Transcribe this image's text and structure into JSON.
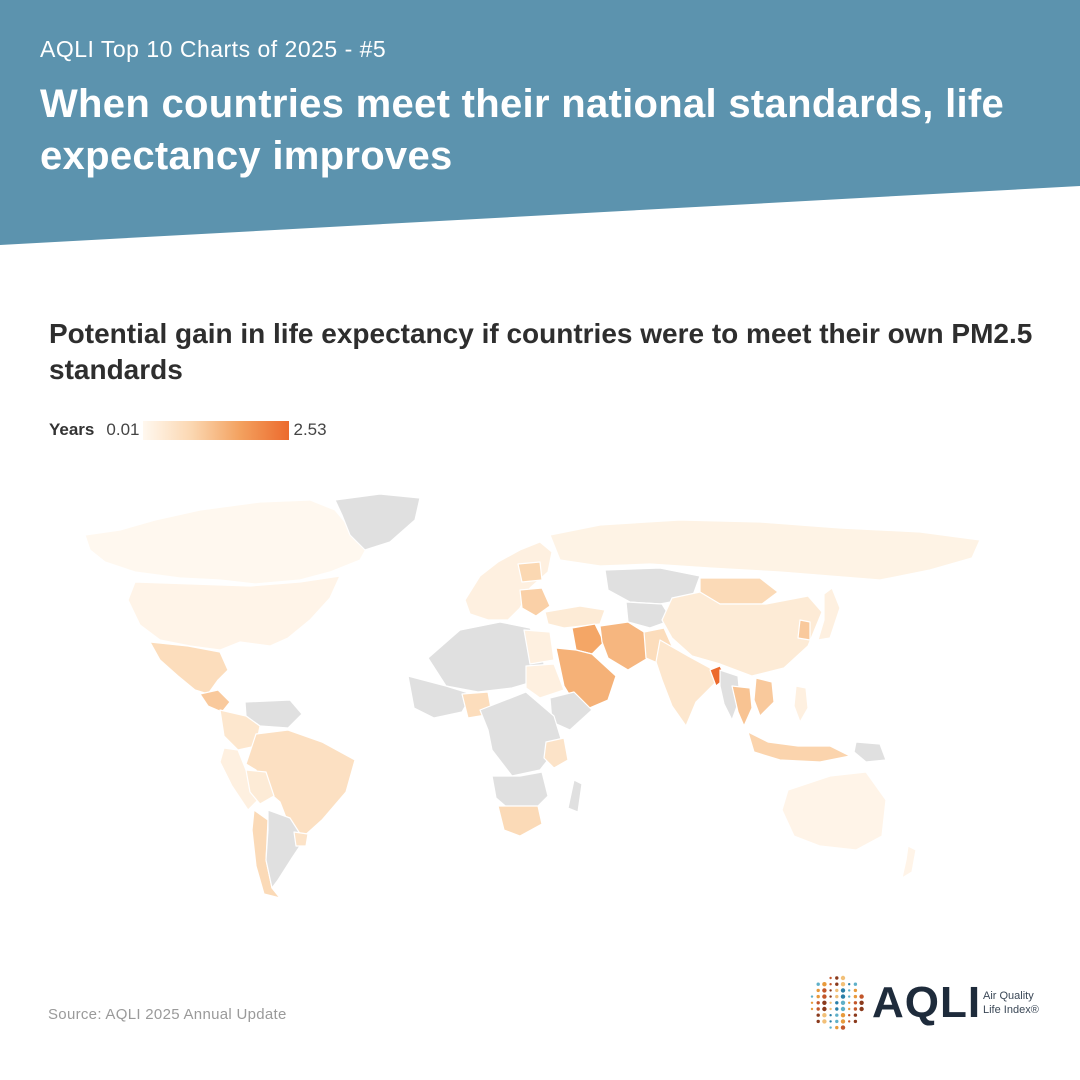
{
  "header": {
    "kicker": "AQLI Top 10 Charts of 2025 - #5",
    "headline": "When countries meet their national standards, life expectancy improves",
    "bg_color": "#5c93ae"
  },
  "chart": {
    "title": "Potential gain in life expectancy if countries were to meet their own PM2.5 standards"
  },
  "legend": {
    "title": "Years",
    "min_label": "0.01",
    "max_label": "2.53",
    "colors": [
      "#fff8ef",
      "#fbd7b1",
      "#f3a15f",
      "#ec6a2d"
    ]
  },
  "map_data": {
    "type": "choropleth",
    "metric": "Potential gain in life expectancy (years)",
    "range": [
      0.01,
      2.53
    ],
    "no_data_color": "#e0e0e0",
    "regions": [
      {
        "name": "Canada",
        "value": 0.01
      },
      {
        "name": "United States",
        "value": 0.02
      },
      {
        "name": "Mexico",
        "value": 0.3
      },
      {
        "name": "Guatemala",
        "value": 0.6
      },
      {
        "name": "Venezuela",
        "value": null
      },
      {
        "name": "Colombia",
        "value": 0.15
      },
      {
        "name": "Peru",
        "value": 0.05
      },
      {
        "name": "Brazil",
        "value": 0.25
      },
      {
        "name": "Bolivia",
        "value": 0.1
      },
      {
        "name": "Chile",
        "value": 0.35
      },
      {
        "name": "Argentina",
        "value": null
      },
      {
        "name": "Uruguay",
        "value": 0.2
      },
      {
        "name": "Greenland",
        "value": null
      },
      {
        "name": "Russia",
        "value": 0.03
      },
      {
        "name": "Western Europe",
        "value": 0.05
      },
      {
        "name": "Poland",
        "value": 0.4
      },
      {
        "name": "Balkans",
        "value": 0.5
      },
      {
        "name": "Turkey",
        "value": 0.1
      },
      {
        "name": "Kazakhstan",
        "value": null
      },
      {
        "name": "Central Asia",
        "value": null
      },
      {
        "name": "Mongolia",
        "value": 0.35
      },
      {
        "name": "China",
        "value": 0.1
      },
      {
        "name": "South Korea",
        "value": 0.6
      },
      {
        "name": "Japan",
        "value": 0.05
      },
      {
        "name": "Iraq",
        "value": 1.2
      },
      {
        "name": "Iran",
        "value": 0.9
      },
      {
        "name": "Saudi Arabia",
        "value": 1.0
      },
      {
        "name": "Pakistan",
        "value": 0.3
      },
      {
        "name": "India",
        "value": 0.15
      },
      {
        "name": "Bangladesh",
        "value": 2.53
      },
      {
        "name": "Myanmar",
        "value": null
      },
      {
        "name": "Thailand",
        "value": 0.7
      },
      {
        "name": "Vietnam",
        "value": 0.6
      },
      {
        "name": "Philippines",
        "value": 0.05
      },
      {
        "name": "Indonesia",
        "value": 0.45
      },
      {
        "name": "Papua New Guinea",
        "value": null
      },
      {
        "name": "Australia",
        "value": 0.02
      },
      {
        "name": "New Zealand",
        "value": 0.02
      },
      {
        "name": "North Africa",
        "value": null
      },
      {
        "name": "Egypt",
        "value": 0.05
      },
      {
        "name": "West Africa",
        "value": null
      },
      {
        "name": "Nigeria",
        "value": 0.3
      },
      {
        "name": "Sudan",
        "value": 0.05
      },
      {
        "name": "Ethiopia",
        "value": null
      },
      {
        "name": "Central Africa",
        "value": null
      },
      {
        "name": "Kenya",
        "value": 0.2
      },
      {
        "name": "Southern Africa",
        "value": null
      },
      {
        "name": "South Africa",
        "value": 0.35
      },
      {
        "name": "Madagascar",
        "value": null
      }
    ]
  },
  "footer": {
    "source": "Source: AQLI 2025 Annual Update"
  },
  "logo": {
    "wordmark": "AQLI",
    "line1": "Air Quality",
    "line2": "Life Index®"
  }
}
